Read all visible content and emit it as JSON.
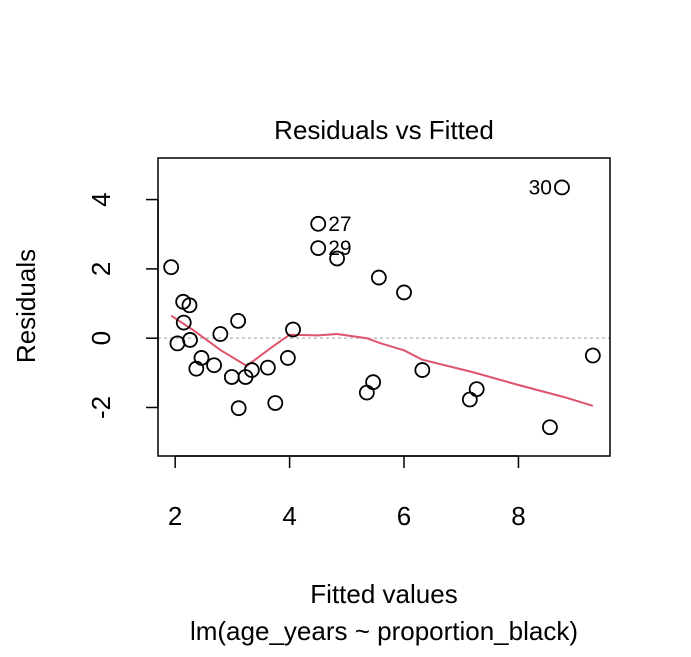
{
  "chart_data": {
    "type": "scatter",
    "title": "Residuals vs Fitted",
    "xlabel": "Fitted values",
    "subtitle": "lm(age_years ~ proportion_black)",
    "ylabel": "Residuals",
    "xlim": [
      1.7,
      9.6
    ],
    "ylim": [
      -3.4,
      5.2
    ],
    "x_ticks": [
      2,
      4,
      6,
      8
    ],
    "x_tick_labels": [
      "2",
      "4",
      "6",
      "8"
    ],
    "y_ticks": [
      -2,
      0,
      2,
      4
    ],
    "y_tick_labels": [
      "-2",
      "0",
      "2",
      "4"
    ],
    "grid": false,
    "reference_line": 0,
    "points": [
      {
        "x": 1.93,
        "y": 2.05
      },
      {
        "x": 2.04,
        "y": -0.15
      },
      {
        "x": 2.14,
        "y": 1.05
      },
      {
        "x": 2.15,
        "y": 0.45
      },
      {
        "x": 2.25,
        "y": 0.95
      },
      {
        "x": 2.26,
        "y": -0.05
      },
      {
        "x": 2.37,
        "y": -0.88
      },
      {
        "x": 2.46,
        "y": -0.57
      },
      {
        "x": 2.68,
        "y": -0.78
      },
      {
        "x": 2.79,
        "y": 0.12
      },
      {
        "x": 2.99,
        "y": -1.12
      },
      {
        "x": 3.1,
        "y": 0.5
      },
      {
        "x": 3.11,
        "y": -2.02
      },
      {
        "x": 3.23,
        "y": -1.12
      },
      {
        "x": 3.34,
        "y": -0.92
      },
      {
        "x": 3.62,
        "y": -0.85
      },
      {
        "x": 3.75,
        "y": -1.87
      },
      {
        "x": 3.97,
        "y": -0.57
      },
      {
        "x": 4.06,
        "y": 0.25
      },
      {
        "x": 4.5,
        "y": 3.3,
        "label": "27"
      },
      {
        "x": 4.5,
        "y": 2.6,
        "label": "29"
      },
      {
        "x": 4.83,
        "y": 2.3
      },
      {
        "x": 5.35,
        "y": -1.57
      },
      {
        "x": 5.46,
        "y": -1.27
      },
      {
        "x": 5.56,
        "y": 1.75
      },
      {
        "x": 6.0,
        "y": 1.32
      },
      {
        "x": 6.32,
        "y": -0.92
      },
      {
        "x": 7.15,
        "y": -1.77
      },
      {
        "x": 7.27,
        "y": -1.47
      },
      {
        "x": 8.55,
        "y": -2.57
      },
      {
        "x": 8.76,
        "y": 4.35,
        "label": "30",
        "label_side": "left"
      },
      {
        "x": 9.3,
        "y": -0.5
      }
    ],
    "smooth_line": {
      "color": "#DF536B",
      "x": [
        1.93,
        2.3,
        2.8,
        3.25,
        3.7,
        4.0,
        4.5,
        4.83,
        5.35,
        5.6,
        6.0,
        6.32,
        7.2,
        8.0,
        8.8,
        9.3
      ],
      "y": [
        0.65,
        0.25,
        -0.35,
        -0.8,
        -0.25,
        0.1,
        0.08,
        0.12,
        0.0,
        -0.15,
        -0.35,
        -0.62,
        -0.98,
        -1.35,
        -1.7,
        -1.95
      ]
    },
    "colors": {
      "points": "#000000",
      "reference_line": "#BEBEBE"
    }
  }
}
